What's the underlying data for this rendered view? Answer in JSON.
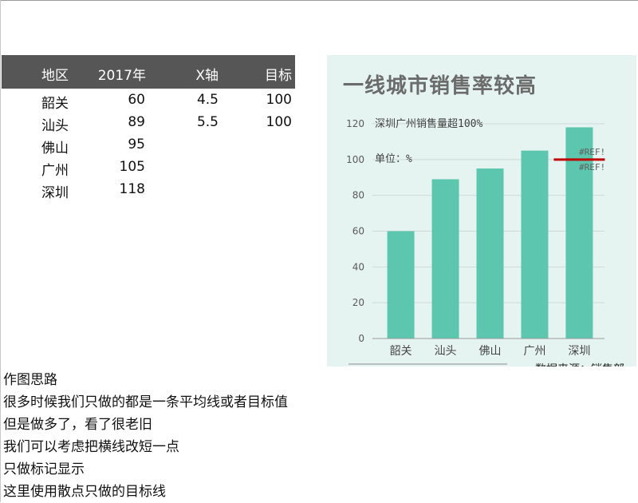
{
  "table": {
    "headers": [
      "地区",
      "2017年",
      "X轴",
      "目标"
    ],
    "rows": [
      [
        "韶关",
        "60",
        "4.5",
        "100"
      ],
      [
        "汕头",
        "89",
        "5.5",
        "100"
      ],
      [
        "佛山",
        "95",
        "",
        ""
      ],
      [
        "广州",
        "105",
        "",
        ""
      ],
      [
        "深圳",
        "118",
        "",
        ""
      ]
    ]
  },
  "notes": {
    "lines": [
      "作图思路",
      "很多时候我们只做的都是一条平均线或者目标值",
      "但是做多了，看了很老旧",
      "我们可以考虑把横线改短一点",
      "只做标记显示",
      "这里使用散点只做的目标线"
    ]
  },
  "colors": {
    "bar": "#5cc7ae",
    "target": "#c00000",
    "chart_bg": "#e6f4f1",
    "header_bg": "#565656"
  },
  "chart_data": {
    "type": "bar",
    "title": "一线城市销售率较高",
    "categories": [
      "韶关",
      "汕头",
      "佛山",
      "广州",
      "深圳"
    ],
    "values": [
      60,
      89,
      95,
      105,
      118
    ],
    "ylim": [
      0,
      120
    ],
    "yticks": [
      0,
      20,
      40,
      60,
      80,
      100,
      120
    ],
    "target": {
      "value": 100,
      "x_range": [
        4.5,
        5.5
      ]
    },
    "annotations": [
      "深圳广州销售量超100%",
      "单位：%"
    ],
    "ref_labels": [
      "#REF!",
      "#REF!"
    ],
    "source": "数据来源：销售部",
    "grid": true
  }
}
